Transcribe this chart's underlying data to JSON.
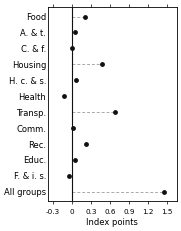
{
  "categories": [
    "Food",
    "A. & t.",
    "C. & f.",
    "Housing",
    "H. c. & s.",
    "Health",
    "Transp.",
    "Comm.",
    "Rec.",
    "Educ.",
    "F. & i. s.",
    "All groups"
  ],
  "values": [
    0.2,
    0.05,
    0.0,
    0.47,
    0.07,
    -0.13,
    0.68,
    0.02,
    0.22,
    0.05,
    -0.05,
    1.45
  ],
  "dashed_categories": [
    "Food",
    "Housing",
    "Transp.",
    "All groups"
  ],
  "dot_color": "#111111",
  "line_color": "#aaaaaa",
  "vline_color": "#111111",
  "xlabel": "Index points",
  "xlim": [
    -0.38,
    1.65
  ],
  "xticks": [
    -0.3,
    0.0,
    0.3,
    0.6,
    0.9,
    1.2,
    1.5
  ],
  "xtick_labels": [
    "-0.3",
    "0",
    "0.3",
    "0.6",
    "0.9",
    "1.2",
    "1.5"
  ],
  "background_color": "#ffffff",
  "label_fontsize": 6.0,
  "xlabel_fontsize": 6.0,
  "tick_fontsize": 5.2
}
